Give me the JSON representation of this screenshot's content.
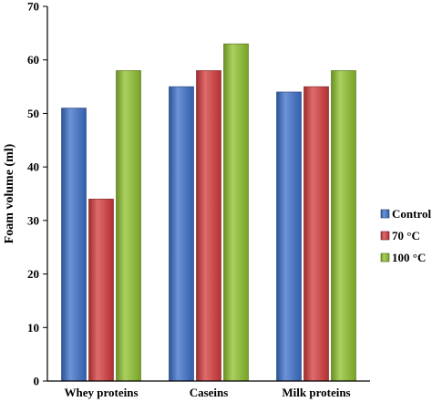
{
  "chart_data": {
    "type": "bar",
    "categories": [
      "Whey proteins",
      "Caseins",
      "Milk proteins"
    ],
    "series": [
      {
        "name": "Control",
        "values": [
          51,
          55,
          54
        ],
        "color": "#3b6fc9"
      },
      {
        "name": "70 °C",
        "values": [
          34,
          58,
          55
        ],
        "color": "#d4393b"
      },
      {
        "name": "100 °C",
        "values": [
          58,
          63,
          58
        ],
        "color": "#8dc02c"
      }
    ],
    "xlabel": "",
    "ylabel": "Foam volume (ml)",
    "ylim": [
      0,
      70
    ],
    "yticks": [
      0,
      10,
      20,
      30,
      40,
      50,
      60,
      70
    ],
    "grid": false,
    "legend_position": "right"
  }
}
